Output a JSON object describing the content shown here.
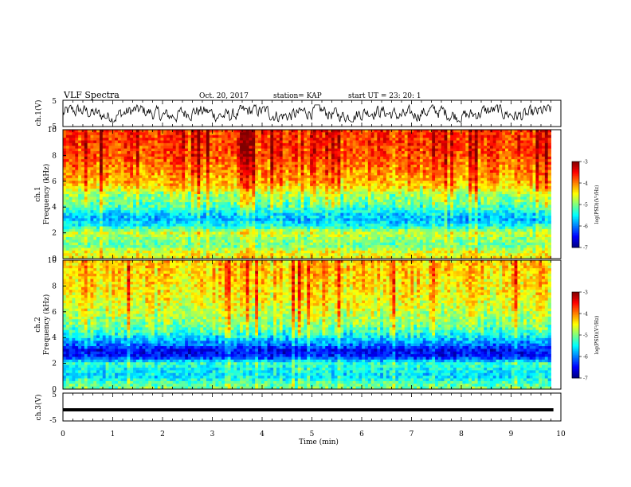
{
  "header": {
    "title": "VLF Spectra",
    "date": "Oct. 20, 2017",
    "station": "station= KAP",
    "start": "start UT = 23: 20: 1"
  },
  "chart_data": [
    {
      "type": "line",
      "name": "channel-1-waveform",
      "ylabel": "ch.1(V)",
      "yticks": [
        "5",
        "-5"
      ],
      "ylim": [
        -5,
        5
      ],
      "xlim": [
        0,
        10
      ],
      "description_of_trace": "noisy waveform roughly between -3 and +3 V"
    },
    {
      "type": "heatmap",
      "name": "channel-1-spectrogram",
      "ylabel_top": "ch.1",
      "ylabel": "Frequency (kHz)",
      "yticks": [
        "0",
        "2",
        "4",
        "6",
        "8",
        "10"
      ],
      "ylim": [
        0,
        10
      ],
      "xlim": [
        0,
        10
      ],
      "colorbar": {
        "label": "log(PSD)(V²/Hz)",
        "ticks": [
          "-3",
          "-4",
          "-5",
          "-6",
          "-7"
        ],
        "range": [
          -7,
          -3
        ]
      },
      "profile": [
        {
          "f": 0.0,
          "v": -4.5
        },
        {
          "f": 0.5,
          "v": -4.6
        },
        {
          "f": 1.0,
          "v": -5.1
        },
        {
          "f": 1.5,
          "v": -5.0
        },
        {
          "f": 2.0,
          "v": -4.7
        },
        {
          "f": 2.5,
          "v": -5.4
        },
        {
          "f": 3.0,
          "v": -5.8
        },
        {
          "f": 3.5,
          "v": -5.6
        },
        {
          "f": 4.0,
          "v": -5.2
        },
        {
          "f": 4.5,
          "v": -5.0
        },
        {
          "f": 5.0,
          "v": -4.9
        },
        {
          "f": 5.5,
          "v": -4.4
        },
        {
          "f": 6.0,
          "v": -4.2
        },
        {
          "f": 7.0,
          "v": -4.0
        },
        {
          "f": 8.0,
          "v": -3.8
        },
        {
          "f": 9.0,
          "v": -3.7
        },
        {
          "f": 10.0,
          "v": -3.7
        }
      ]
    },
    {
      "type": "heatmap",
      "name": "channel-2-spectrogram",
      "ylabel_top": "ch.2",
      "ylabel": "Frequency (kHz)",
      "yticks": [
        "0",
        "2",
        "4",
        "6",
        "8",
        "10"
      ],
      "ylim": [
        0,
        10
      ],
      "xlim": [
        0,
        10
      ],
      "colorbar": {
        "label": "log(PSD)(V²/Hz)",
        "ticks": [
          "-3",
          "-4",
          "-5",
          "-6",
          "-7"
        ],
        "range": [
          -7,
          -3
        ]
      },
      "profile": [
        {
          "f": 0.0,
          "v": -5.0
        },
        {
          "f": 0.5,
          "v": -5.2
        },
        {
          "f": 1.0,
          "v": -5.6
        },
        {
          "f": 1.5,
          "v": -5.5
        },
        {
          "f": 2.0,
          "v": -5.3
        },
        {
          "f": 2.5,
          "v": -6.4
        },
        {
          "f": 3.0,
          "v": -6.5
        },
        {
          "f": 3.5,
          "v": -6.0
        },
        {
          "f": 4.0,
          "v": -5.6
        },
        {
          "f": 4.5,
          "v": -5.2
        },
        {
          "f": 5.0,
          "v": -5.0
        },
        {
          "f": 6.0,
          "v": -4.7
        },
        {
          "f": 7.0,
          "v": -4.5
        },
        {
          "f": 8.0,
          "v": -4.4
        },
        {
          "f": 9.0,
          "v": -4.3
        },
        {
          "f": 10.0,
          "v": -4.3
        }
      ]
    },
    {
      "type": "line",
      "name": "channel-3-waveform",
      "ylabel": "ch.3(V)",
      "yticks": [
        "5",
        "-5"
      ],
      "ylim": [
        -5,
        5
      ],
      "xlim": [
        0,
        10
      ],
      "y_constant": -1
    }
  ],
  "xaxis": {
    "label": "Time (min)",
    "ticks": [
      "0",
      "1",
      "2",
      "3",
      "4",
      "5",
      "6",
      "7",
      "8",
      "9",
      "10"
    ]
  }
}
